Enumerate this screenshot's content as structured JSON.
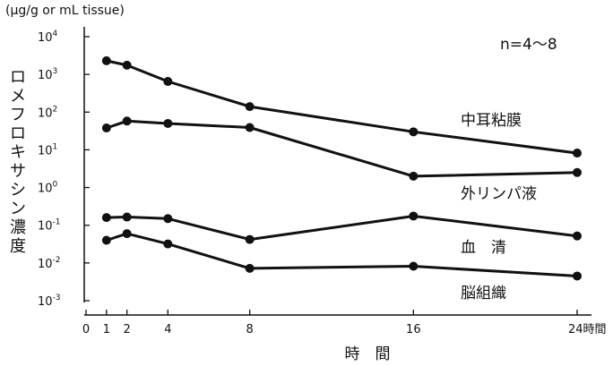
{
  "chart_data": {
    "type": "line",
    "y_scale": "log",
    "y_unit": "(µg/g or mL tissue)",
    "ylabel": "ロメフロキサシン濃度",
    "xlabel": "時　間",
    "annotation": "n=4〜8",
    "x_ticks": [
      {
        "value": 0,
        "label": "0"
      },
      {
        "value": 1,
        "label": "1"
      },
      {
        "value": 2,
        "label": "2"
      },
      {
        "value": 4,
        "label": "4"
      },
      {
        "value": 8,
        "label": "8"
      },
      {
        "value": 16,
        "label": "16"
      },
      {
        "value": 24,
        "label": "24時間"
      }
    ],
    "y_ticks": [
      {
        "exp": -3,
        "base": "10",
        "sup": "-3"
      },
      {
        "exp": -2,
        "base": "10",
        "sup": "-2"
      },
      {
        "exp": -1,
        "base": "10",
        "sup": "-1"
      },
      {
        "exp": 0,
        "base": "10",
        "sup": "0"
      },
      {
        "exp": 1,
        "base": "10",
        "sup": "1"
      },
      {
        "exp": 2,
        "base": "10",
        "sup": "2"
      },
      {
        "exp": 3,
        "base": "10",
        "sup": "3"
      },
      {
        "exp": 4,
        "base": "10",
        "sup": "4"
      }
    ],
    "series": [
      {
        "name": "中耳粘膜",
        "x": [
          1,
          2,
          4,
          8,
          16,
          24
        ],
        "y": [
          2300,
          1750,
          650,
          140,
          30,
          8.2
        ]
      },
      {
        "name": "外リンパ液",
        "x": [
          1,
          2,
          4,
          8,
          16,
          24
        ],
        "y": [
          38,
          58,
          50,
          39,
          2.0,
          2.5
        ]
      },
      {
        "name": "血　清",
        "x": [
          1,
          2,
          4,
          8,
          16,
          24
        ],
        "y": [
          0.16,
          0.165,
          0.15,
          0.042,
          0.175,
          0.052
        ]
      },
      {
        "name": "脳組織",
        "x": [
          1,
          2,
          4,
          8,
          16,
          24
        ],
        "y": [
          0.04,
          0.06,
          0.032,
          0.0072,
          0.0082,
          0.0045
        ]
      }
    ]
  }
}
